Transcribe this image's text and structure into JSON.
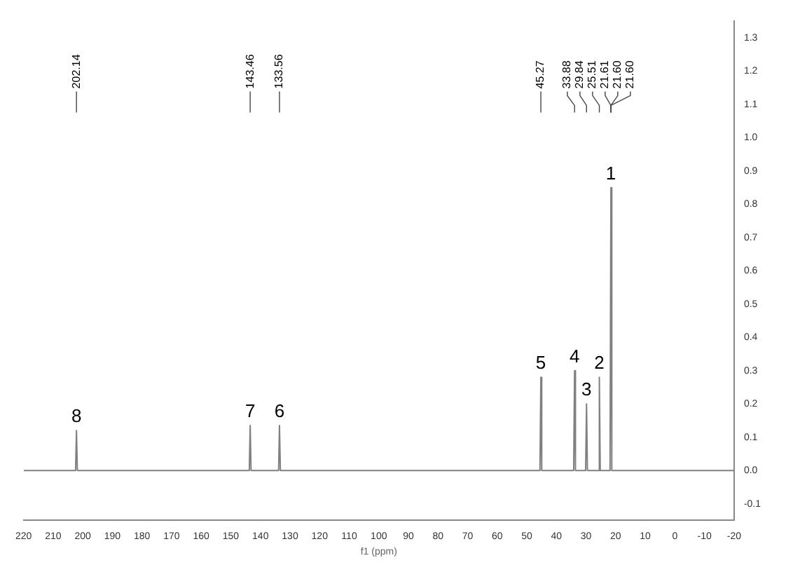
{
  "chart_data": {
    "type": "line",
    "xlabel": "f1 (ppm)",
    "x": [
      220,
      202.44,
      202.14,
      201.84,
      143.76,
      143.46,
      143.16,
      133.86,
      133.56,
      133.26,
      45.57,
      45.27,
      44.97,
      34.18,
      33.88,
      33.58,
      30.14,
      29.84,
      29.54,
      25.81,
      25.51,
      25.21,
      21.9,
      21.6,
      21.3,
      -20
    ],
    "series": [
      {
        "color": "#808080",
        "values": [
          0,
          0,
          0.12,
          0,
          0,
          0.135,
          0,
          0,
          0.135,
          0,
          0,
          0.28,
          0,
          0,
          0.3,
          0,
          0,
          0.2,
          0,
          0,
          0.28,
          0,
          0,
          0.85,
          0,
          0
        ]
      }
    ],
    "xlim": [
      220,
      -20
    ],
    "xticks": [
      220,
      210,
      200,
      190,
      180,
      170,
      160,
      150,
      140,
      130,
      120,
      110,
      100,
      90,
      80,
      70,
      60,
      50,
      40,
      30,
      20,
      10,
      0,
      -10,
      -20
    ],
    "ylim": [
      -0.15,
      1.35
    ],
    "yticks": [
      -0.1,
      {
        "value": 0,
        "label": "0.0"
      },
      0.1,
      0.2,
      0.3,
      0.4,
      0.5,
      0.6,
      0.7,
      0.8,
      0.9,
      {
        "value": 1,
        "label": "1.0"
      },
      1.1,
      1.2,
      1.3
    ],
    "grid": false,
    "legend": false,
    "marker": "none",
    "line_style": "solid",
    "annotations": [
      {
        "text": "8",
        "x": 202.14,
        "y": 0.12
      },
      {
        "text": "7",
        "x": 143.46,
        "y": 0.135
      },
      {
        "text": "6",
        "x": 133.56,
        "y": 0.135
      },
      {
        "text": "5",
        "x": 45.27,
        "y": 0.28
      },
      {
        "text": "4",
        "x": 33.88,
        "y": 0.3
      },
      {
        "text": "3",
        "x": 29.84,
        "y": 0.2
      },
      {
        "text": "2",
        "x": 25.51,
        "y": 0.28
      },
      {
        "text": "1",
        "x": 21.6,
        "y": 0.85
      },
      {
        "text": "202.14",
        "x": 202.14
      },
      {
        "text": "143.46",
        "x": 143.46
      },
      {
        "text": "133.56",
        "x": 133.56
      },
      {
        "text": "45.27",
        "x": 45.27
      },
      {
        "text": "33.88",
        "x": 33.88
      },
      {
        "text": "29.84",
        "x": 29.84
      },
      {
        "text": "25.51",
        "x": 25.51
      },
      {
        "text": "21.61",
        "x": 21.61
      },
      {
        "text": "21.60",
        "x": 21.6
      },
      {
        "text": "21.60",
        "x": 21.6
      }
    ]
  }
}
